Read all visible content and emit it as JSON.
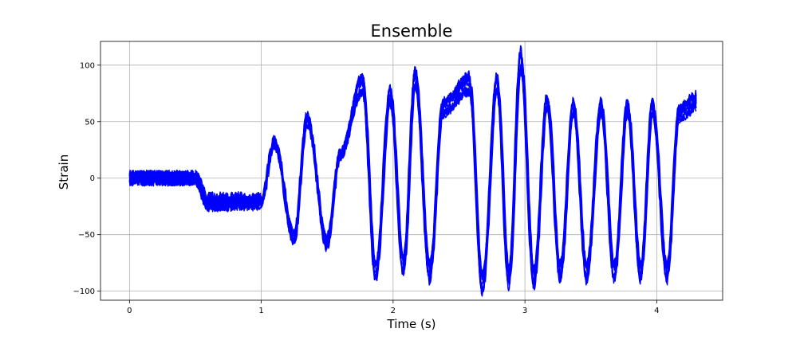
{
  "chart_data": {
    "type": "line",
    "title": "Ensemble",
    "xlabel": "Time (s)",
    "ylabel": "Strain",
    "xlim": [
      -0.22,
      4.5
    ],
    "ylim": [
      -108,
      121
    ],
    "xticks": [
      0,
      1,
      2,
      3,
      4
    ],
    "yticks": [
      -100,
      -50,
      0,
      50,
      100
    ],
    "xtick_labels": [
      "0",
      "1",
      "2",
      "3",
      "4"
    ],
    "ytick_labels": [
      "−100",
      "−50",
      "0",
      "50",
      "100"
    ],
    "grid": true,
    "legend": "none",
    "line_color": "#0000ff",
    "x_range": [
      0,
      4.3
    ],
    "series_count": 10,
    "envelope": {
      "description_points_t": [
        0,
        0.5,
        0.6,
        1.0,
        1.1,
        1.25,
        1.35,
        1.5,
        1.6,
        1.77,
        1.87,
        1.98,
        2.08,
        2.17,
        2.28,
        2.38,
        2.58,
        2.68,
        2.79,
        2.88,
        2.97,
        3.07,
        3.17,
        3.27,
        3.37,
        3.47,
        3.58,
        3.68,
        3.78,
        3.88,
        3.97,
        4.08,
        4.17,
        4.3
      ],
      "approx_mean_strain": [
        0,
        0,
        -20,
        -20,
        30,
        -50,
        50,
        -55,
        20,
        80,
        -80,
        70,
        -75,
        85,
        -80,
        60,
        80,
        -90,
        80,
        -85,
        100,
        -85,
        65,
        -80,
        60,
        -80,
        60,
        -80,
        60,
        -80,
        60,
        -80,
        55,
        65
      ]
    }
  }
}
